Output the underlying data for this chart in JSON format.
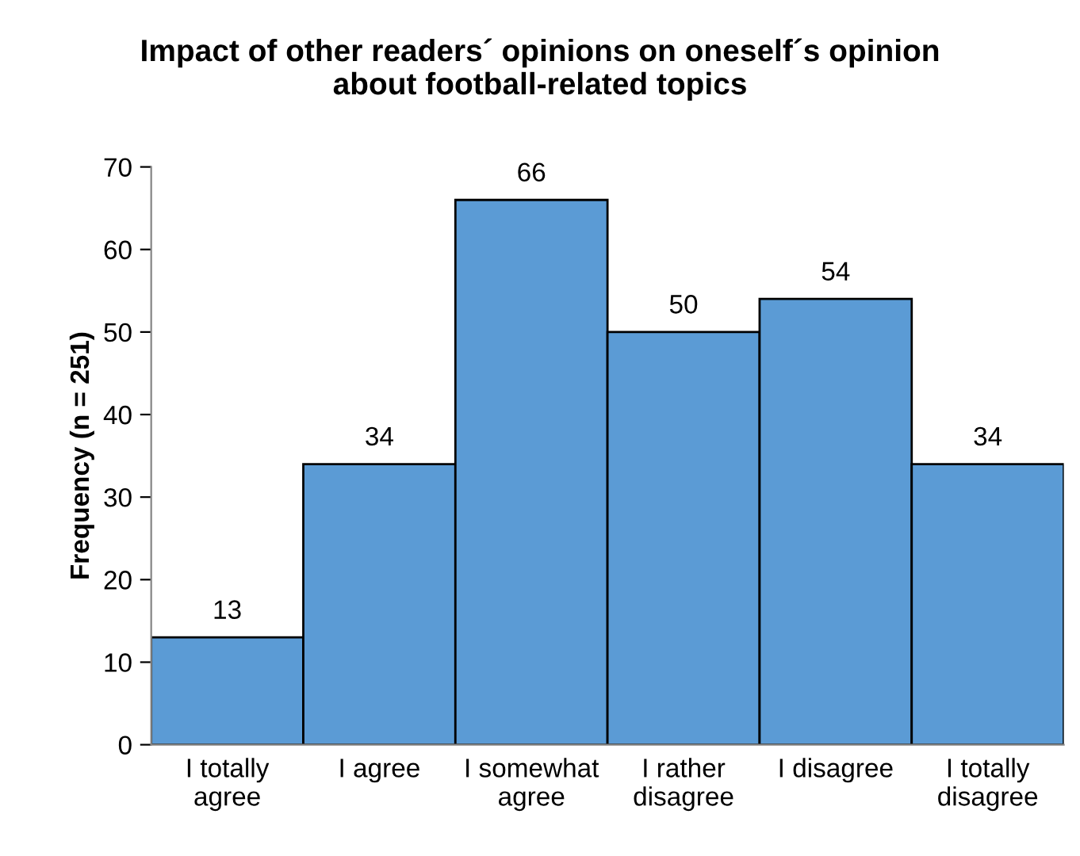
{
  "chart_data": {
    "type": "bar",
    "title": "Impact of other readers´ opinions on oneself´s opinion\nabout football-related topics",
    "ylabel": "Frequency (n = 251)",
    "categories": [
      "I totally\nagree",
      "I agree",
      "I somewhat\nagree",
      "I rather\ndisagree",
      "I disagree",
      "I totally\ndisagree"
    ],
    "values": [
      13,
      34,
      66,
      50,
      54,
      34
    ],
    "color": "#5b9bd5",
    "ylim": [
      0,
      70
    ],
    "yticks": [
      0,
      10,
      20,
      30,
      40,
      50,
      60,
      70
    ],
    "grid": false,
    "legend": false,
    "data_labels": true
  }
}
